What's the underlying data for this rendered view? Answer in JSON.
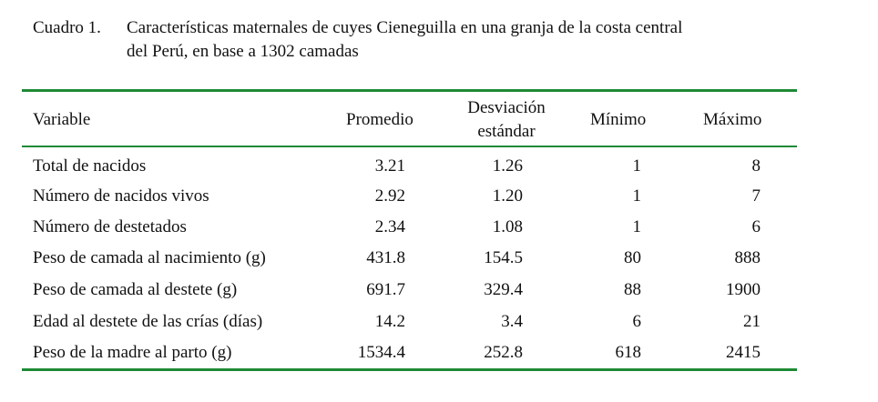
{
  "caption": {
    "label": "Cuadro 1.",
    "line1": "Características maternales de cuyes Cieneguilla en una granja de la costa central",
    "line2": "del Perú, en base a 1302 camadas"
  },
  "table": {
    "headers": {
      "variable": "Variable",
      "promedio": "Promedio",
      "desviacion": "Desviación estándar",
      "minimo": "Mínimo",
      "maximo": "Máximo"
    },
    "rows": [
      {
        "variable": "Total de nacidos",
        "promedio": "3.21",
        "desviacion": "1.26",
        "minimo": "1",
        "maximo": "8"
      },
      {
        "variable": "Número de nacidos vivos",
        "promedio": "2.92",
        "desviacion": "1.20",
        "minimo": "1",
        "maximo": "7"
      },
      {
        "variable": "Número de destetados",
        "promedio": "2.34",
        "desviacion": "1.08",
        "minimo": "1",
        "maximo": "6"
      },
      {
        "variable": "Peso de camada al nacimiento (g)",
        "promedio": "431.8",
        "desviacion": "154.5",
        "minimo": "80",
        "maximo": "888"
      },
      {
        "variable": "Peso de camada al destete (g)",
        "promedio": "691.7",
        "desviacion": "329.4",
        "minimo": "88",
        "maximo": "1900"
      },
      {
        "variable": "Edad al destete de las crías (días)",
        "promedio": "14.2",
        "desviacion": "3.4",
        "minimo": "6",
        "maximo": "21"
      },
      {
        "variable": "Peso de la madre al parto (g)",
        "promedio": "1534.4",
        "desviacion": "252.8",
        "minimo": "618",
        "maximo": "2415"
      }
    ]
  },
  "colors": {
    "rule": "#1e8a35",
    "text": "#111111"
  }
}
